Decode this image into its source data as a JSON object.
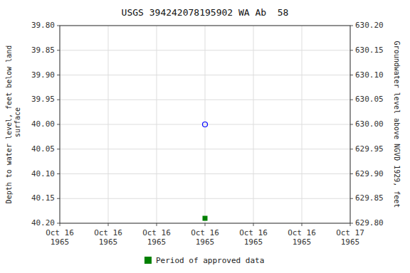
{
  "chart_data": {
    "type": "scatter",
    "title": "USGS 394242078195902 WA Ab  58",
    "y_label": "Depth to water level, feet below land\n surface",
    "y2_label": "Groundwater level above NGVD 1929, feet",
    "categories": [
      "Oct 16\n1965",
      "Oct 16\n1965",
      "Oct 16\n1965",
      "Oct 16\n1965",
      "Oct 16\n1965",
      "Oct 16\n1965",
      "Oct 17\n1965"
    ],
    "series": [
      {
        "color": "blue",
        "marker": "circle",
        "values": [
          null,
          null,
          null,
          40.0,
          null,
          null,
          null
        ]
      },
      {
        "name": "Period of approved data",
        "color": "#008000",
        "marker": "square",
        "values": [
          null,
          null,
          null,
          40.19,
          null,
          null,
          null
        ]
      }
    ],
    "ylim": [
      40.2,
      39.8
    ],
    "yticks": [
      {
        "value": 39.8,
        "label": "39.80"
      },
      {
        "value": 39.85,
        "label": "39.85"
      },
      {
        "value": 39.9,
        "label": "39.90"
      },
      {
        "value": 39.95,
        "label": "39.95"
      },
      {
        "value": 40.0,
        "label": "40.00"
      },
      {
        "value": 40.05,
        "label": "40.05"
      },
      {
        "value": 40.1,
        "label": "40.10"
      },
      {
        "value": 40.15,
        "label": "40.15"
      },
      {
        "value": 40.2,
        "label": "40.20"
      }
    ],
    "y2lim": [
      629.8,
      630.2
    ],
    "y2ticks": [
      {
        "value": 629.8,
        "label": "629.80"
      },
      {
        "value": 629.85,
        "label": "629.85"
      },
      {
        "value": 629.9,
        "label": "629.90"
      },
      {
        "value": 629.95,
        "label": "629.95"
      },
      {
        "value": 630.0,
        "label": "630.00"
      },
      {
        "value": 630.05,
        "label": "630.05"
      },
      {
        "value": 630.1,
        "label": "630.10"
      },
      {
        "value": 630.15,
        "label": "630.15"
      },
      {
        "value": 630.2,
        "label": "630.20"
      }
    ],
    "grid": true,
    "legend": "bottom"
  }
}
